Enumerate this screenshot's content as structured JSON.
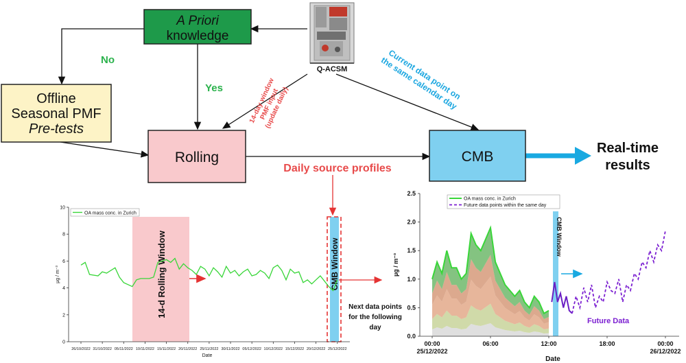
{
  "flow": {
    "apriori": {
      "line1": "A Priori",
      "line2": "knowledge"
    },
    "offline": {
      "line1": "Offline",
      "line2": "Seasonal PMF",
      "line3": "Pre-tests"
    },
    "rolling": "Rolling",
    "cmb": "CMB",
    "instrument": "Q-ACSM",
    "no": "No",
    "yes": "Yes",
    "pmf_input": [
      "14-day window",
      "PMF input",
      "(update daily)"
    ],
    "current_point": [
      "Current data point on",
      "the same calendar day"
    ],
    "realtime": [
      "Real-time",
      "results"
    ],
    "daily_profiles": "Daily source profiles",
    "next_points": [
      "Next data points",
      "for the following",
      "day"
    ]
  },
  "colors": {
    "apriori": "#1e9a4a",
    "offline": "#fdf3c6",
    "rolling": "#f9c9cc",
    "cmb": "#7fd0f0",
    "green_text": "#2bb24c",
    "red_text": "#e84b4b",
    "cyan_text": "#1aa6e0",
    "big_arrow": "#19a9e1",
    "series_green": "#39d639",
    "future_purple": "#7b1fd1"
  },
  "chart_data": [
    {
      "type": "line",
      "legend": [
        "OA mass conc. in Zurich"
      ],
      "xlabel": "Date",
      "ylabel": "µg / m⁻³",
      "ylim": [
        0,
        10
      ],
      "y_ticks": [
        "0",
        "2",
        "4",
        "6",
        "8",
        "10"
      ],
      "x_ticks": [
        "26/10/2022",
        "31/10/2022",
        "05/11/2022",
        "10/11/2022",
        "15/11/2022",
        "20/11/2022",
        "25/11/2022",
        "30/11/2022",
        "05/12/2022",
        "10/12/2022",
        "15/12/2022",
        "20/12/2022",
        "25/12/2022"
      ],
      "x_start_day": 0,
      "x_end_day": 61,
      "series": [
        {
          "name": "OA mass conc. in Zurich",
          "x": [
            0,
            1,
            2,
            4,
            5,
            6,
            8,
            9,
            10,
            12,
            13,
            14,
            15,
            16,
            17,
            18,
            19,
            20,
            21,
            22,
            23,
            24,
            25,
            26,
            27,
            28,
            29,
            30,
            31,
            32,
            33,
            34,
            35,
            36,
            37,
            38,
            39,
            40,
            41,
            42,
            43,
            44,
            45,
            46,
            47,
            48,
            49,
            50,
            51,
            52,
            53,
            54,
            55,
            56,
            57,
            58,
            59,
            60
          ],
          "values": [
            5.7,
            5.9,
            5.0,
            4.9,
            5.2,
            5.1,
            5.5,
            4.8,
            4.4,
            4.1,
            4.6,
            4.7,
            4.7,
            4.7,
            4.8,
            5.9,
            6.0,
            6.1,
            5.9,
            6.2,
            5.4,
            5.8,
            5.5,
            5.3,
            5.0,
            5.6,
            5.4,
            4.9,
            5.5,
            5.2,
            4.8,
            5.6,
            5.1,
            5.3,
            4.9,
            5.2,
            5.4,
            4.9,
            5.0,
            5.3,
            5.1,
            4.7,
            5.5,
            5.7,
            5.3,
            4.6,
            5.4,
            5.1,
            5.2,
            4.4,
            4.6,
            4.3,
            4.6,
            4.9,
            4.5,
            4.1,
            3.8,
            4.6
          ]
        }
      ],
      "annotations": [
        "14-d Rolling Window",
        "CMB Window"
      ]
    },
    {
      "type": "area",
      "legend": [
        "OA mass conc. in Zurich",
        "Future data points within the same day"
      ],
      "xlabel": "Date",
      "ylabel": "µg / m⁻³",
      "ylim": [
        0,
        2.5
      ],
      "y_ticks": [
        "0.0",
        "0.5",
        "1.0",
        "1.5",
        "2.0",
        "2.5"
      ],
      "x_ticks": [
        {
          "hour": 0,
          "line1": "00:00",
          "line2": "25/12/2022"
        },
        {
          "hour": 6,
          "line1": "06:00",
          "line2": ""
        },
        {
          "hour": 12,
          "line1": "12:00",
          "line2": ""
        },
        {
          "hour": 18,
          "line1": "18:00",
          "line2": ""
        },
        {
          "hour": 24,
          "line1": "00:00",
          "line2": "26/12/2022"
        }
      ],
      "xlim": [
        0,
        24
      ],
      "series": [
        {
          "name": "OA mass conc. in Zurich",
          "x": [
            0,
            0.5,
            1,
            1.5,
            2,
            2.5,
            3,
            3.5,
            4,
            4.5,
            5,
            5.5,
            6,
            6.5,
            7,
            7.5,
            8,
            8.5,
            9,
            9.5,
            10,
            10.5,
            11,
            11.5,
            12
          ],
          "values": [
            1.0,
            1.3,
            1.1,
            1.5,
            1.2,
            1.2,
            1.0,
            1.1,
            1.8,
            1.6,
            1.5,
            1.7,
            1.9,
            1.3,
            1.1,
            0.9,
            0.8,
            0.7,
            0.8,
            0.6,
            0.5,
            0.7,
            0.6,
            0.4,
            0.45
          ]
        },
        {
          "name": "current-day-purple",
          "x": [
            12.3,
            12.6,
            12.9,
            13.2,
            13.5,
            13.8,
            14.1,
            14.4
          ],
          "values": [
            0.6,
            0.95,
            0.6,
            0.75,
            0.5,
            0.7,
            0.45,
            0.4
          ]
        },
        {
          "name": "Future data points within the same day",
          "x": [
            14.4,
            14.8,
            15.2,
            15.6,
            16.0,
            16.4,
            16.8,
            17.2,
            17.6,
            18.0,
            18.4,
            18.8,
            19.2,
            19.6,
            20.0,
            20.4,
            20.8,
            21.2,
            21.6,
            22.0,
            22.4,
            22.8,
            23.2,
            23.6,
            24.0
          ],
          "values": [
            0.4,
            0.7,
            0.5,
            0.85,
            0.6,
            0.9,
            0.5,
            0.7,
            0.6,
            0.95,
            0.8,
            0.75,
            1.0,
            0.6,
            0.9,
            0.8,
            1.1,
            1.0,
            1.3,
            1.2,
            1.5,
            1.3,
            1.6,
            1.5,
            1.85
          ]
        }
      ],
      "annotations": [
        "CMB Window",
        "Future Data"
      ]
    }
  ]
}
